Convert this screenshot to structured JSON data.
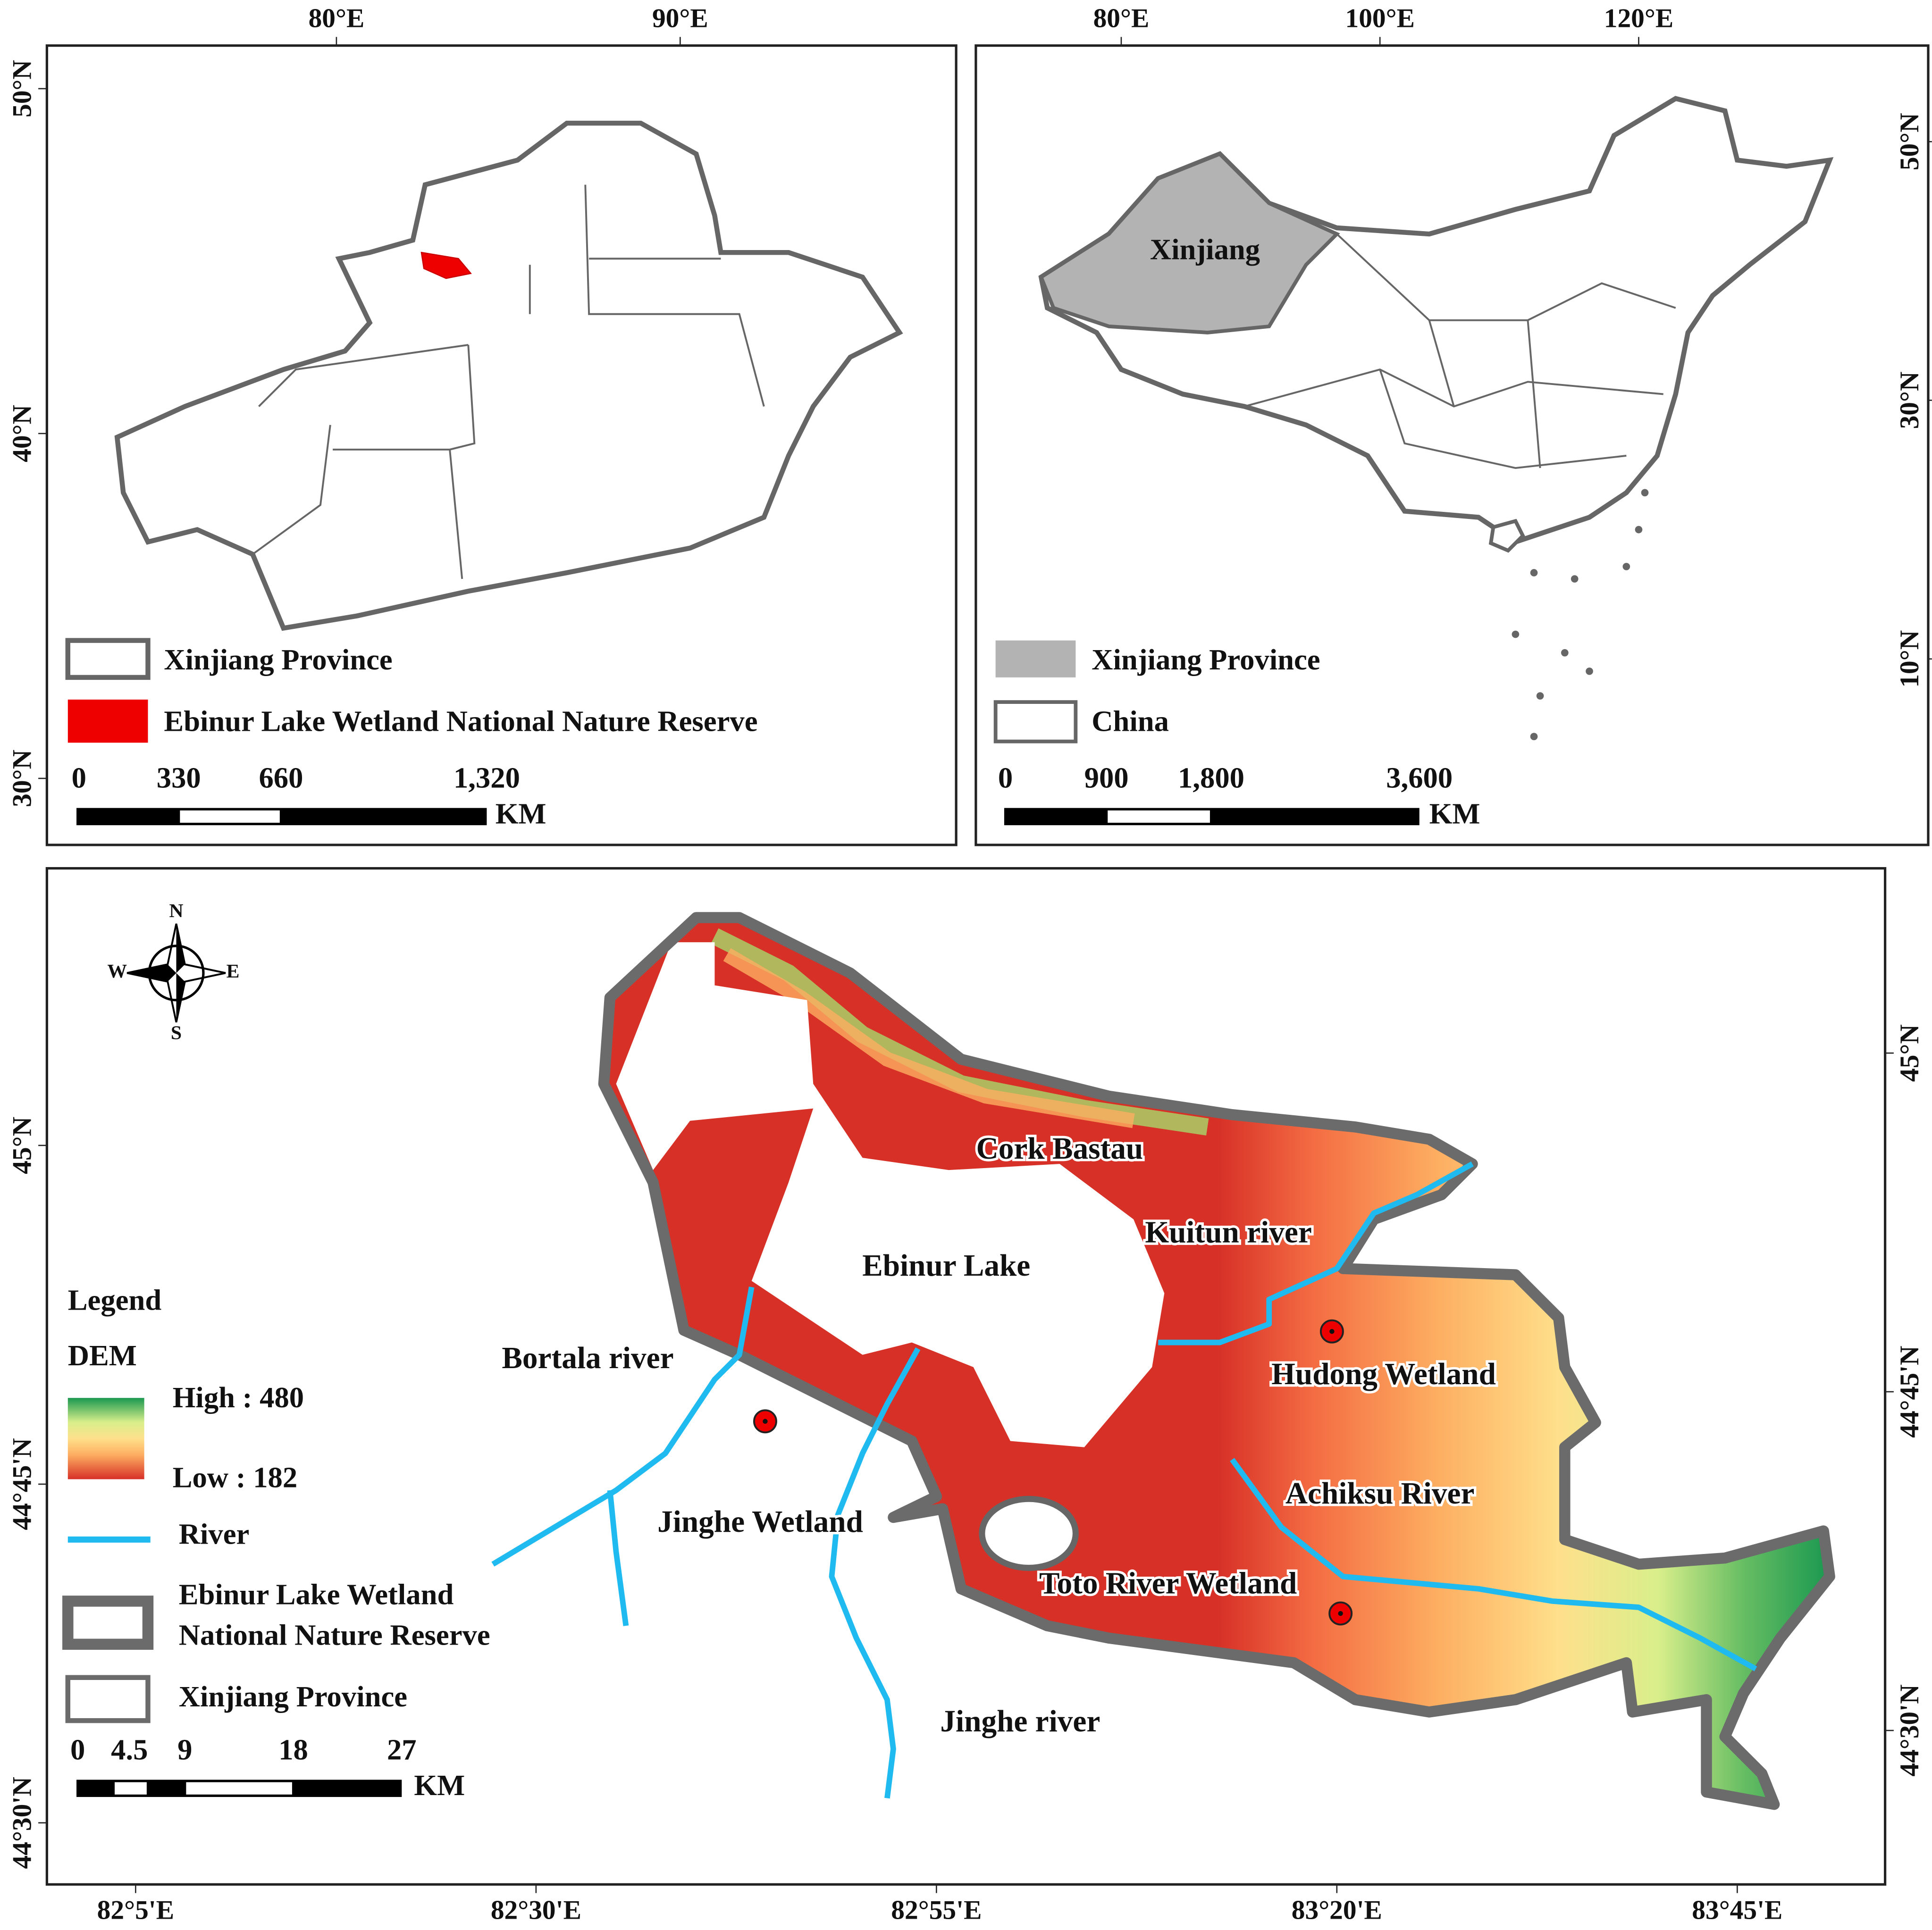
{
  "xinjiang_map": {
    "x_ticks": [
      "80°E",
      "90°E"
    ],
    "y_ticks": [
      "50°N",
      "40°N",
      "30°N"
    ],
    "legend": [
      "Xinjiang Province",
      "Ebinur Lake Wetland National Nature Reserve"
    ],
    "scale": [
      "0",
      "330",
      "660",
      "1,320"
    ],
    "scale_unit": "KM"
  },
  "china_map": {
    "x_ticks": [
      "80°E",
      "100°E",
      "120°E"
    ],
    "y_ticks": [
      "50°N",
      "30°N",
      "10°N"
    ],
    "region_label": "Xinjiang",
    "legend": [
      "Xinjiang Province",
      "China"
    ],
    "scale": [
      "0",
      "900",
      "1,800",
      "3,600"
    ],
    "scale_unit": "KM"
  },
  "detail_map": {
    "x_ticks": [
      "82°5'E",
      "82°30'E",
      "82°55'E",
      "83°20'E",
      "83°45'E"
    ],
    "y_ticks": [
      "45°N",
      "44°45'N",
      "44°30'N"
    ],
    "compass": [
      "N",
      "S",
      "W",
      "E"
    ],
    "places": [
      "Cork Bastau",
      "Kuitun river",
      "Ebinur Lake",
      "Hudong Wetland",
      "Bortala river",
      "Achiksu River",
      "Jinghe Wetland",
      "Toto River Wetland",
      "Jinghe river"
    ],
    "legend": {
      "title": "Legend",
      "dem": "DEM",
      "high": "High : 480",
      "low": "Low : 182",
      "river": "River",
      "reserve": [
        "Ebinur Lake Wetland",
        "National Nature Reserve"
      ],
      "province": "Xinjiang Province"
    },
    "scale": [
      "0",
      "4.5",
      "9",
      "18",
      "27"
    ],
    "scale_unit": "KM"
  }
}
